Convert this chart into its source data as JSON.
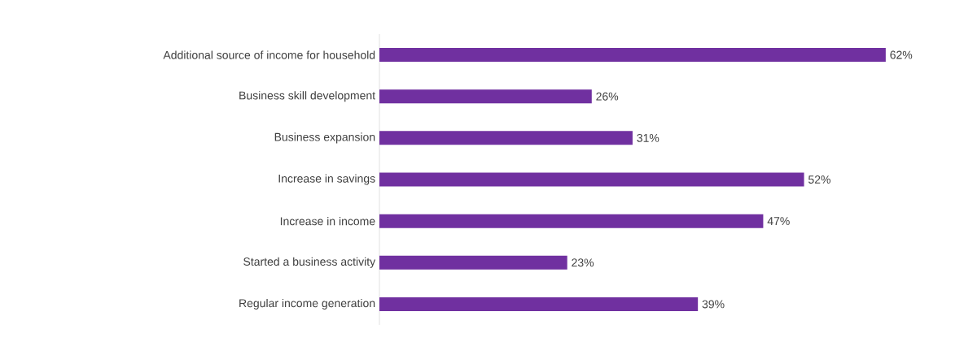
{
  "chart_data": {
    "type": "bar",
    "orientation": "horizontal",
    "categories": [
      "Additional source of income for household",
      "Business skill development",
      "Business expansion",
      "Increase in savings",
      "Increase in income",
      "Started a business activity",
      "Regular income generation"
    ],
    "values": [
      62,
      26,
      31,
      52,
      47,
      23,
      39
    ],
    "value_labels": [
      "62%",
      "26%",
      "31%",
      "52%",
      "47%",
      "23%",
      "39%"
    ],
    "color": "#7030a0",
    "tick_labels": "y"
  }
}
